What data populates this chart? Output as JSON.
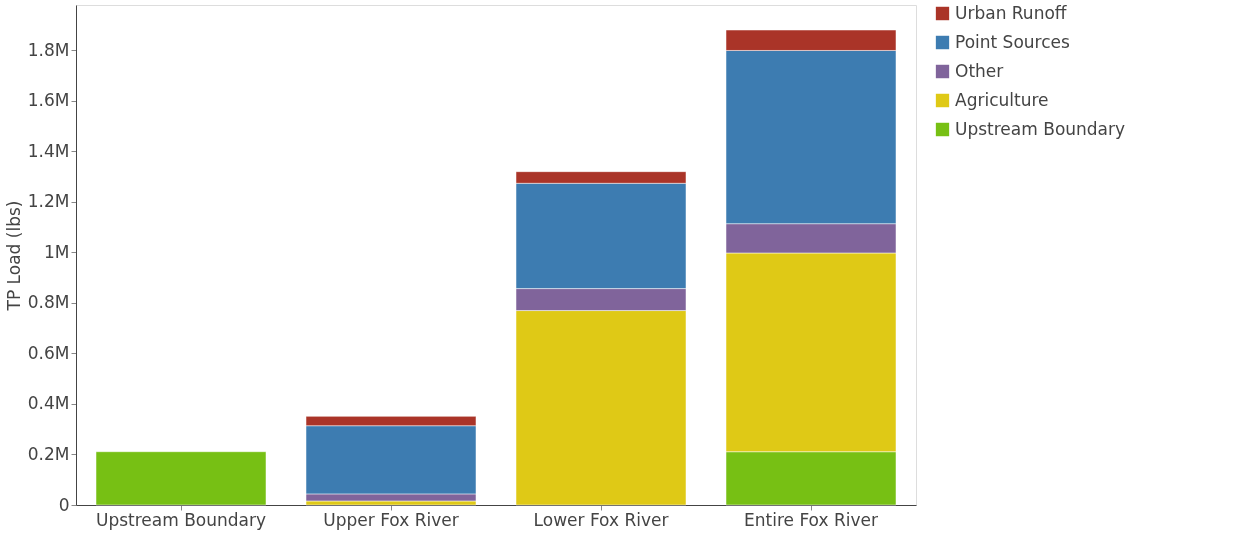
{
  "chart_data": {
    "type": "bar",
    "stacked": true,
    "ylabel": "TP Load (lbs)",
    "categories": [
      "Upstream Boundary",
      "Upper Fox River",
      "Lower Fox River",
      "Entire Fox River"
    ],
    "series": [
      {
        "name": "Upstream Boundary",
        "color": "#77c014",
        "values": [
          211000,
          null,
          null,
          211000
        ]
      },
      {
        "name": "Agriculture",
        "color": "#dfc916",
        "values": [
          null,
          16000,
          770000,
          787000
        ]
      },
      {
        "name": "Other",
        "color": "#80649b",
        "values": [
          null,
          28000,
          87000,
          116000
        ]
      },
      {
        "name": "Point Sources",
        "color": "#3d7cb1",
        "values": [
          null,
          270000,
          417000,
          686000
        ]
      },
      {
        "name": "Urban Runoff",
        "color": "#aa3428",
        "values": [
          null,
          37000,
          46000,
          81000
        ]
      }
    ],
    "ylim": [
      0,
      1980000
    ],
    "yticks": [
      0,
      {
        "value": 200000,
        "label": "0.2M"
      },
      {
        "value": 400000,
        "label": "0.4M"
      },
      {
        "value": 600000,
        "label": "0.6M"
      },
      {
        "value": 800000,
        "label": "0.8M"
      },
      {
        "value": 1000000,
        "label": "1M"
      },
      {
        "value": 1200000,
        "label": "1.2M"
      },
      {
        "value": 1400000,
        "label": "1.4M"
      },
      {
        "value": 1600000,
        "label": "1.6M"
      },
      {
        "value": 1800000,
        "label": "1.8M"
      }
    ],
    "grid": false,
    "legend": "top right"
  }
}
